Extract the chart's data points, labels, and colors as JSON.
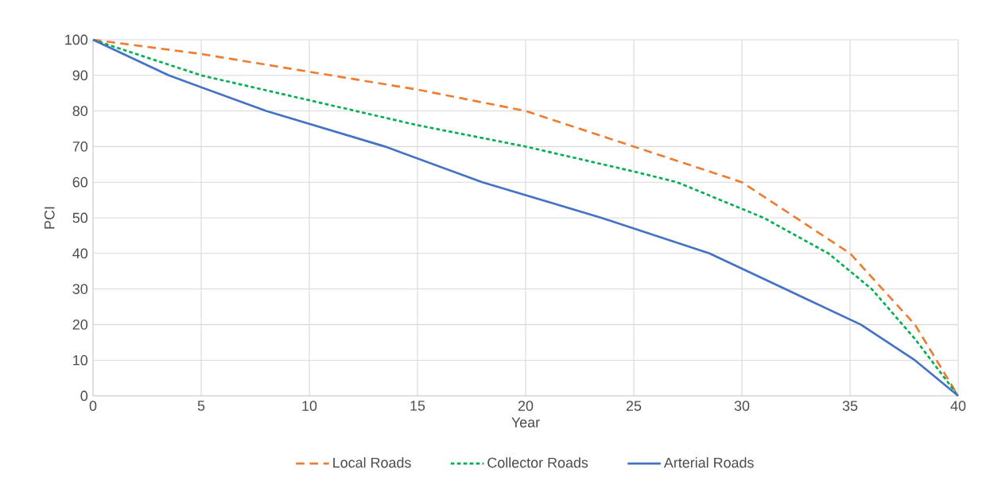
{
  "chart_data": {
    "type": "line",
    "xlabel": "Year",
    "ylabel": "PCI",
    "xlim": [
      0,
      40
    ],
    "ylim": [
      0,
      100
    ],
    "xticks": [
      0,
      5,
      10,
      15,
      20,
      25,
      30,
      35,
      40
    ],
    "yticks": [
      0,
      10,
      20,
      30,
      40,
      50,
      60,
      70,
      80,
      90,
      100
    ],
    "grid": true,
    "legend": "bottom",
    "series": [
      {
        "name": "Local Roads",
        "color": "#ed7d31",
        "line_style": "dashed",
        "x": [
          0,
          5,
          10,
          15,
          20,
          25,
          30,
          32,
          35,
          38,
          40
        ],
        "values": [
          100,
          96,
          91,
          86,
          80,
          70,
          60,
          52,
          40,
          20,
          0
        ]
      },
      {
        "name": "Collector Roads",
        "color": "#00b050",
        "line_style": "dotted",
        "x": [
          0,
          5,
          10,
          15,
          20,
          25,
          27,
          31,
          34,
          36,
          38,
          40
        ],
        "values": [
          100,
          90,
          83,
          76,
          70,
          63,
          60,
          50,
          40,
          30,
          16,
          0
        ]
      },
      {
        "name": "Arterial Roads",
        "color": "#4472c4",
        "line_style": "solid",
        "x": [
          0,
          3.5,
          8,
          13.5,
          18,
          23.5,
          28.5,
          32,
          35.5,
          38,
          40
        ],
        "values": [
          100,
          90,
          80,
          70,
          60,
          50,
          40,
          30,
          20,
          10,
          0
        ]
      }
    ]
  }
}
